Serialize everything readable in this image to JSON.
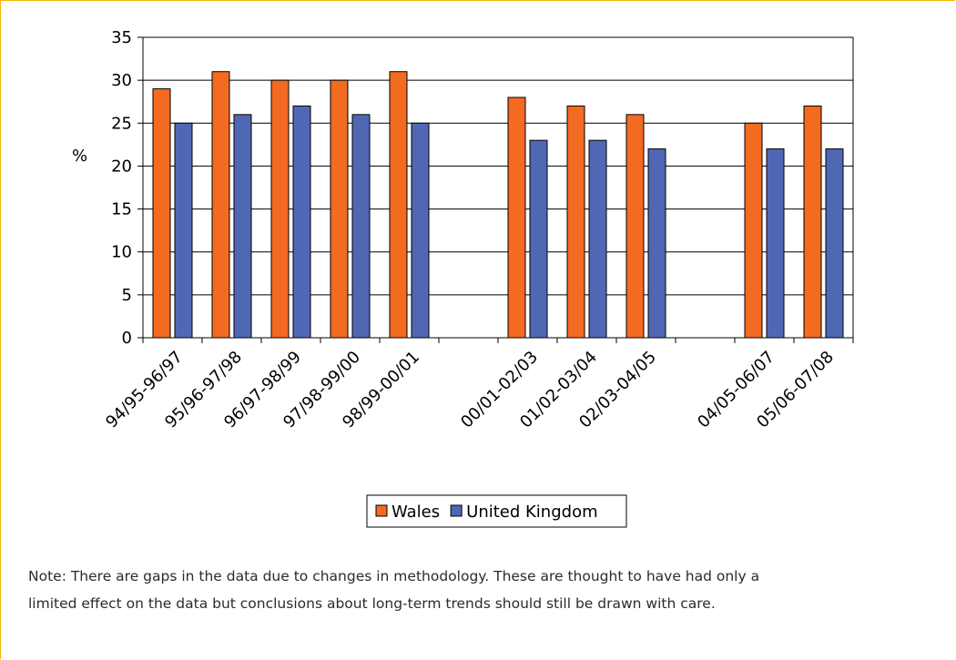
{
  "chart_data": {
    "type": "bar",
    "categories": [
      "94/95-96/97",
      "95/96-97/98",
      "96/97-98/99",
      "97/98-99/00",
      "98/99-00/01",
      "",
      "00/01-02/03",
      "01/02-03/04",
      "02/03-04/05",
      "",
      "04/05-06/07",
      "05/06-07/08"
    ],
    "series": [
      {
        "name": "Wales",
        "color": "#f36a21",
        "values": [
          29,
          31,
          30,
          30,
          31,
          null,
          28,
          27,
          26,
          null,
          25,
          27
        ]
      },
      {
        "name": "United Kingdom",
        "color": "#5068b4",
        "values": [
          25,
          26,
          27,
          26,
          25,
          null,
          23,
          23,
          22,
          null,
          22,
          22
        ]
      }
    ],
    "ylabel": "%",
    "ylim": [
      0,
      35
    ],
    "yticks": [
      0,
      5,
      10,
      15,
      20,
      25,
      30,
      35
    ],
    "grid": true,
    "legend": "bottom"
  },
  "note": {
    "line1": "Note: There are gaps in the data due to changes in methodology. These are thought to have had only a",
    "line2": "limited effect on the data but conclusions about long-term trends should still be drawn with care."
  }
}
